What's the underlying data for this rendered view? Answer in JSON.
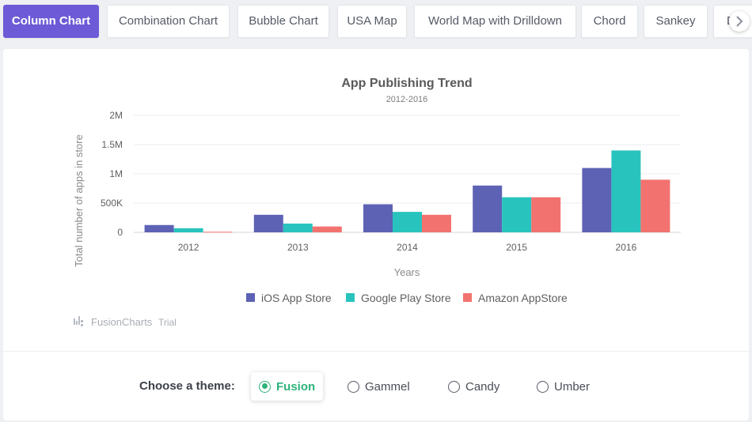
{
  "tabs": [
    {
      "label": "Column Chart",
      "active": true
    },
    {
      "label": "Combination Chart",
      "active": false
    },
    {
      "label": "Bubble Chart",
      "active": false
    },
    {
      "label": "USA Map",
      "active": false
    },
    {
      "label": "World Map with Drilldown",
      "active": false
    },
    {
      "label": "Chord",
      "active": false
    },
    {
      "label": "Sankey",
      "active": false
    },
    {
      "label": "D",
      "active": false
    }
  ],
  "scroll_icon": "chevron-right-icon",
  "chart_data": {
    "type": "bar",
    "title": "App Publishing Trend",
    "subtitle": "2012-2016",
    "xlabel": "Years",
    "ylabel": "Total number of apps in store",
    "ylim": [
      0,
      2000000
    ],
    "yticks": [
      {
        "value": 0,
        "label": "0"
      },
      {
        "value": 500000,
        "label": "500K"
      },
      {
        "value": 1000000,
        "label": "1M"
      },
      {
        "value": 1500000,
        "label": "1.5M"
      },
      {
        "value": 2000000,
        "label": "2M"
      }
    ],
    "categories": [
      "2012",
      "2013",
      "2014",
      "2015",
      "2016"
    ],
    "series": [
      {
        "name": "iOS App Store",
        "color": "#5d62b5",
        "values": [
          125000,
          300000,
          480000,
          800000,
          1100000
        ]
      },
      {
        "name": "Google Play Store",
        "color": "#29c3be",
        "values": [
          70000,
          150000,
          350000,
          600000,
          1400000
        ]
      },
      {
        "name": "Amazon AppStore",
        "color": "#f2726f",
        "values": [
          10000,
          100000,
          300000,
          600000,
          900000
        ]
      }
    ],
    "grid": true,
    "legend": "bottom"
  },
  "watermark": {
    "brand": "FusionCharts",
    "suffix": "Trial"
  },
  "themes": {
    "label": "Choose a theme:",
    "options": [
      {
        "label": "Fusion",
        "selected": true
      },
      {
        "label": "Gammel",
        "selected": false
      },
      {
        "label": "Candy",
        "selected": false
      },
      {
        "label": "Umber",
        "selected": false
      }
    ]
  }
}
